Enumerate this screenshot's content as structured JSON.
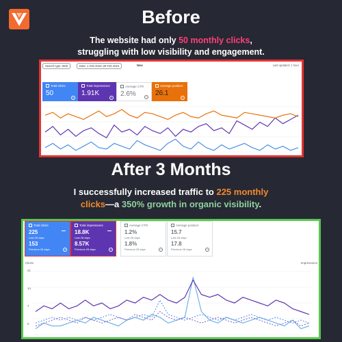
{
  "brand": {
    "logo_icon": "chevron-v-logo-icon",
    "logo_color": "#f26a2e"
  },
  "before": {
    "title": "Before",
    "subtitle_pre": "The website had only ",
    "subtitle_highlight": "50 monthly clicks",
    "subtitle_post": ",",
    "subtitle_line2": "struggling with low visibility and engagement.",
    "highlight_color": "#ff3f7a",
    "border_color": "#e33434",
    "toolbar": {
      "search_type": "Search type: Web",
      "date": "Date: 1 Feb 2024–29 Feb 2024",
      "new_label": "New",
      "updated": "Last updated: 1 hour"
    },
    "cards": [
      {
        "label": "Total clicks",
        "value": "50",
        "color": "#4285f4",
        "active": true
      },
      {
        "label": "Total impressions",
        "value": "1.91K",
        "color": "#5e35b1",
        "active": true
      },
      {
        "label": "Average CTR",
        "value": "2.6%",
        "color": "#ffffff",
        "active": false
      },
      {
        "label": "Average position",
        "value": "26.1",
        "color": "#e8710a",
        "active": true
      }
    ]
  },
  "after": {
    "title": "After 3 Months",
    "line1_pre": "I successfully increased traffic to ",
    "line1_highlight": "225 monthly",
    "line2_highlight": "clicks",
    "line2_mid": "—a ",
    "line2_green": "350% growth in organic visibility",
    "line2_post": ".",
    "border_color": "#57c84d",
    "cards": [
      {
        "label": "Total clicks",
        "value": "225",
        "period": "Last 28 days",
        "prev_value": "153",
        "prev_period": "Previous 28 days",
        "color": "#4285f4",
        "active": true
      },
      {
        "label": "Total impressions",
        "value": "18.8K",
        "period": "Last 28 days",
        "prev_value": "8.57K",
        "prev_period": "Previous 28 days",
        "color": "#5e35b1",
        "active": true
      },
      {
        "label": "Average CTR",
        "value": "1.2%",
        "period": "Last 28 days",
        "prev_value": "1.8%",
        "prev_period": "Previous 28 days",
        "color": "#ffffff",
        "active": false
      },
      {
        "label": "Average position",
        "value": "15.7",
        "period": "Last 28 days",
        "prev_value": "17.8",
        "prev_period": "Previous 28 days",
        "color": "#ffffff",
        "active": false
      }
    ],
    "y_axis_left_title": "Clicks",
    "y_axis_right_title": "Impressions",
    "y_ticks_left": [
      "21",
      "14",
      "7",
      "0"
    ]
  },
  "chart_data": [
    {
      "type": "line",
      "series": [
        {
          "values": [
            3,
            6,
            2,
            5,
            1,
            4,
            7,
            3,
            2,
            6,
            4,
            2,
            8,
            5,
            3,
            1,
            6,
            9,
            4,
            2,
            7,
            3,
            1,
            5,
            2,
            4,
            6,
            3,
            1,
            5,
            2,
            4,
            1,
            3
          ]
        },
        {
          "values": [
            14,
            18,
            12,
            16,
            11,
            15,
            17,
            13,
            10,
            19,
            14,
            16,
            12,
            18,
            15,
            13,
            17,
            11,
            16,
            14,
            18,
            20,
            15,
            17,
            13,
            22,
            19,
            16,
            21,
            18,
            24,
            20,
            23,
            26
          ]
        },
        {
          "values": [
            26,
            28,
            24,
            27,
            25,
            23,
            26,
            29,
            25,
            27,
            30,
            26,
            24,
            28,
            27,
            25,
            23,
            26,
            28,
            25,
            24,
            27,
            29,
            26,
            25,
            24,
            28,
            27,
            26,
            25,
            24,
            26,
            27,
            25
          ]
        }
      ]
    },
    {
      "type": "line",
      "series": [
        {
          "values": [
            2,
            4,
            3,
            3,
            4,
            5,
            4,
            6,
            5,
            4,
            3,
            5,
            6,
            5,
            7,
            6,
            4,
            5,
            6,
            20,
            8,
            5,
            4,
            6,
            5,
            4,
            5,
            6,
            5,
            4,
            3,
            5,
            2,
            3
          ]
        },
        {
          "values": [
            8,
            10,
            9,
            11,
            9,
            10,
            12,
            10,
            11,
            9,
            10,
            12,
            11,
            13,
            12,
            14,
            12,
            11,
            13,
            19,
            14,
            13,
            14,
            12,
            11,
            13,
            12,
            11,
            10,
            12,
            11,
            9,
            8,
            7
          ]
        },
        {
          "values": [
            4,
            5,
            6,
            5,
            6,
            5,
            6,
            5,
            6,
            7,
            6,
            5,
            6,
            7,
            6,
            12,
            7,
            6,
            5,
            6,
            7,
            6,
            5,
            6,
            5,
            6,
            7,
            6,
            5,
            6,
            5,
            4,
            5,
            4
          ]
        },
        {
          "values": [
            3,
            4,
            5,
            6,
            5,
            4,
            6,
            5,
            4,
            5,
            6,
            5,
            7,
            6,
            5,
            8,
            6,
            5,
            6,
            5,
            4,
            5,
            6,
            5,
            4,
            5,
            6,
            5,
            4,
            3,
            4,
            5,
            3,
            4
          ]
        }
      ]
    }
  ]
}
